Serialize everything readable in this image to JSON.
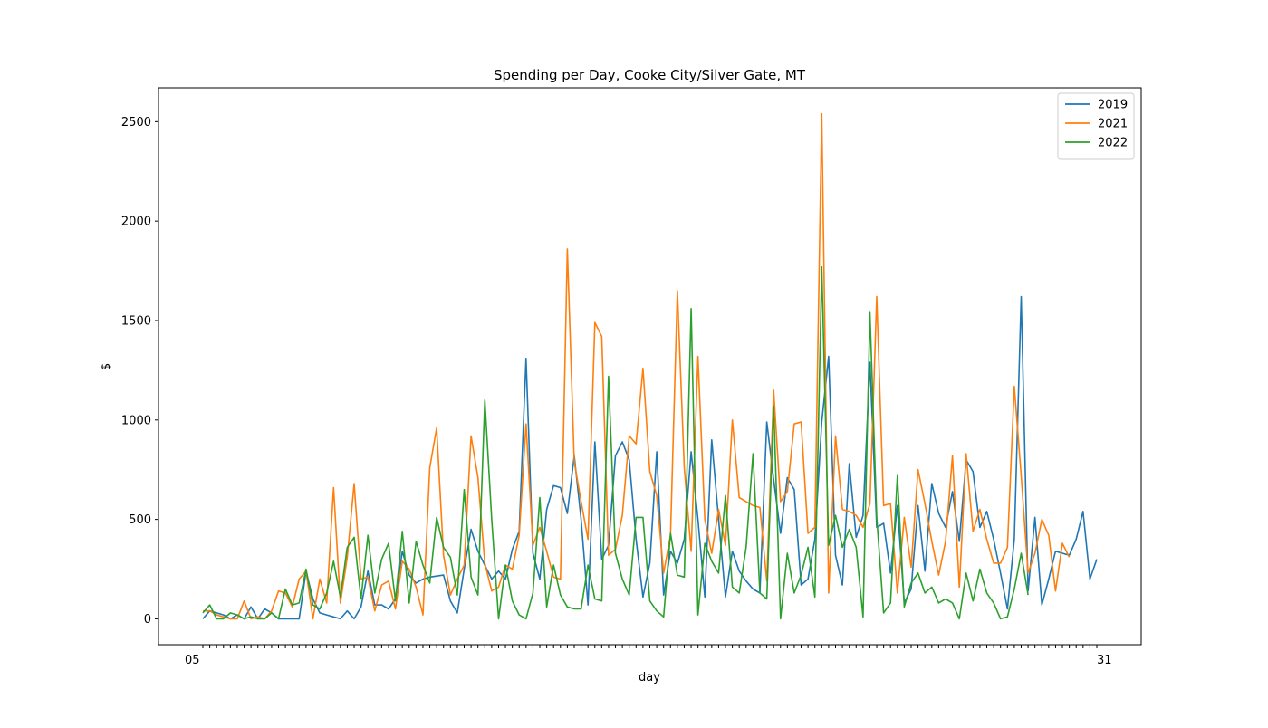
{
  "chart_data": {
    "type": "line",
    "title": "Spending per Day, Cooke City/Silver Gate, MT",
    "xlabel": "day",
    "ylabel": "$",
    "ylim": [
      -130,
      2670
    ],
    "yticks": [
      0,
      500,
      1000,
      1500,
      2000,
      2500
    ],
    "x_tick_labels_visible": [
      "05",
      "31"
    ],
    "legend_position": "top-right",
    "grid": false,
    "series": [
      {
        "name": "2019",
        "color": "#1f77b4",
        "values": [
          0,
          40,
          30,
          20,
          0,
          20,
          0,
          60,
          0,
          50,
          30,
          0,
          0,
          0,
          0,
          240,
          100,
          30,
          20,
          10,
          0,
          40,
          0,
          60,
          240,
          70,
          70,
          50,
          100,
          340,
          220,
          180,
          200,
          210,
          215,
          220,
          90,
          30,
          250,
          450,
          340,
          270,
          200,
          240,
          200,
          350,
          440,
          1310,
          330,
          200,
          550,
          670,
          660,
          530,
          820,
          500,
          70,
          890,
          300,
          370,
          820,
          890,
          800,
          400,
          110,
          280,
          840,
          120,
          340,
          280,
          400,
          840,
          500,
          110,
          900,
          500,
          110,
          340,
          240,
          190,
          150,
          130,
          990,
          700,
          430,
          710,
          650,
          170,
          200,
          400,
          990,
          1320,
          320,
          170,
          780,
          410,
          520,
          1290,
          460,
          480,
          230,
          570,
          80,
          150,
          570,
          240,
          680,
          530,
          460,
          640,
          390,
          800,
          740,
          460,
          540,
          400,
          230,
          50,
          400,
          1620,
          140,
          510,
          70,
          200,
          340,
          330,
          320,
          400,
          540,
          200,
          300
        ]
      },
      {
        "name": "2021",
        "color": "#ff7f0e",
        "values": [
          40,
          40,
          20,
          10,
          0,
          0,
          90,
          0,
          10,
          0,
          40,
          140,
          130,
          60,
          200,
          240,
          0,
          200,
          80,
          660,
          80,
          310,
          680,
          200,
          210,
          40,
          170,
          190,
          50,
          290,
          250,
          160,
          20,
          760,
          960,
          320,
          120,
          200,
          270,
          920,
          710,
          280,
          140,
          160,
          270,
          250,
          420,
          980,
          370,
          460,
          340,
          210,
          200,
          1860,
          790,
          590,
          400,
          1490,
          1420,
          320,
          350,
          520,
          920,
          880,
          1260,
          740,
          620,
          230,
          420,
          1650,
          760,
          340,
          1320,
          500,
          330,
          550,
          370,
          1000,
          610,
          590,
          570,
          560,
          190,
          1150,
          590,
          640,
          980,
          990,
          430,
          460,
          2540,
          130,
          920,
          550,
          540,
          520,
          460,
          580,
          1620,
          570,
          580,
          130,
          510,
          260,
          750,
          580,
          390,
          220,
          390,
          820,
          160,
          830,
          440,
          550,
          400,
          280,
          280,
          360,
          1170,
          720,
          230,
          330,
          500,
          420,
          140,
          380,
          310
        ]
      },
      {
        "name": "2022",
        "color": "#2ca02c",
        "values": [
          30,
          70,
          0,
          0,
          30,
          20,
          0,
          10,
          0,
          0,
          30,
          0,
          150,
          70,
          80,
          250,
          70,
          50,
          130,
          290,
          110,
          360,
          410,
          100,
          420,
          130,
          300,
          380,
          90,
          440,
          80,
          390,
          270,
          180,
          510,
          360,
          310,
          120,
          650,
          210,
          120,
          1100,
          500,
          0,
          270,
          90,
          20,
          0,
          130,
          610,
          60,
          270,
          120,
          60,
          50,
          50,
          270,
          100,
          90,
          1220,
          330,
          200,
          120,
          510,
          510,
          90,
          40,
          10,
          430,
          220,
          210,
          1560,
          20,
          380,
          290,
          230,
          620,
          160,
          130,
          360,
          830,
          130,
          100,
          1070,
          0,
          330,
          130,
          220,
          360,
          110,
          1770,
          370,
          520,
          360,
          450,
          360,
          10,
          1540,
          510,
          30,
          80,
          720,
          60,
          180,
          230,
          130,
          160,
          80,
          100,
          80,
          0,
          230,
          90,
          250,
          130,
          80,
          0,
          10,
          150,
          330,
          120
        ]
      }
    ]
  }
}
